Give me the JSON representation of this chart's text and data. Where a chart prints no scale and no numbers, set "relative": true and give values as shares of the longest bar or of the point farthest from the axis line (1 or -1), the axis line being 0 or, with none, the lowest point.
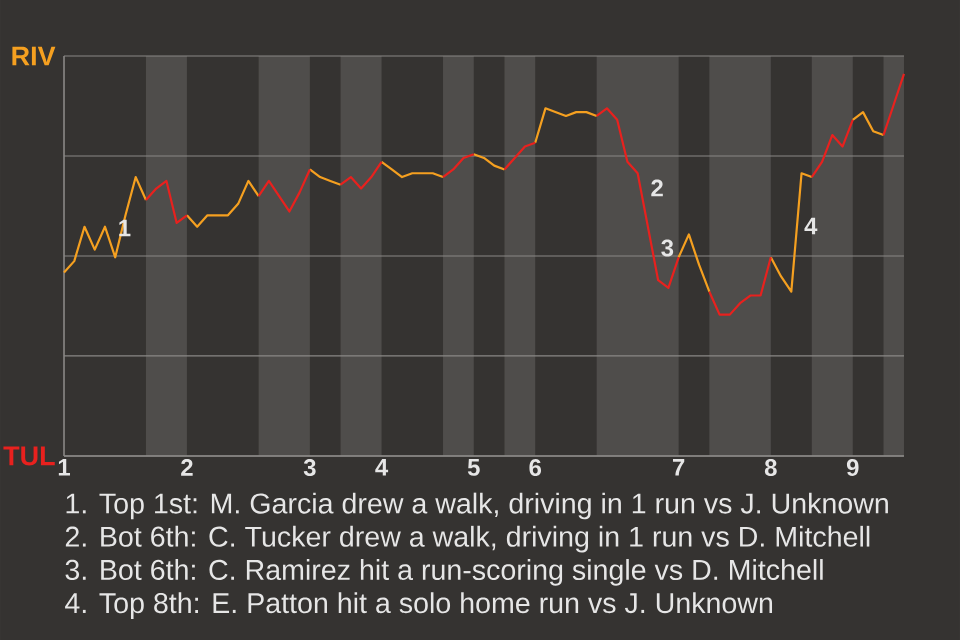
{
  "chart_data": {
    "type": "line",
    "relative": true,
    "categories": [
      "1",
      null,
      null,
      null,
      null,
      null,
      null,
      null,
      null,
      null,
      null,
      null,
      "2",
      null,
      null,
      null,
      null,
      null,
      null,
      null,
      null,
      null,
      null,
      null,
      "3",
      null,
      null,
      null,
      null,
      null,
      null,
      "4",
      null,
      null,
      null,
      null,
      null,
      null,
      null,
      null,
      "5",
      null,
      null,
      null,
      null,
      null,
      "6",
      null,
      null,
      null,
      null,
      null,
      null,
      null,
      null,
      null,
      null,
      null,
      null,
      null,
      "7",
      null,
      null,
      null,
      null,
      null,
      null,
      null,
      null,
      "8",
      null,
      null,
      null,
      null,
      null,
      null,
      null,
      "9",
      null,
      null,
      null,
      null,
      null
    ],
    "grid": "y",
    "series": [
      {
        "name": "RIV",
        "color": "#f5a020",
        "values": [
          0.48,
          0.51,
          0.6,
          0.54,
          0.6,
          0.52,
          0.63,
          0.73,
          0.67,
          null,
          null,
          null,
          0.63,
          0.6,
          0.63,
          0.63,
          0.63,
          0.66,
          0.72,
          0.68,
          null,
          null,
          null,
          null,
          0.75,
          0.73,
          0.72,
          0.71,
          null,
          null,
          null,
          0.77,
          0.75,
          0.73,
          0.74,
          0.74,
          0.74,
          0.73,
          null,
          null,
          0.79,
          0.78,
          0.76,
          0.75,
          null,
          null,
          0.82,
          0.91,
          0.9,
          0.89,
          0.9,
          0.9,
          0.89,
          null,
          null,
          null,
          null,
          null,
          null,
          null,
          0.52,
          0.58,
          0.5,
          0.43,
          null,
          null,
          null,
          null,
          null,
          0.52,
          0.47,
          0.43,
          0.74,
          0.73,
          null,
          null,
          null,
          0.88,
          0.9,
          0.85,
          0.84,
          null,
          null
        ]
      },
      {
        "name": "TUL",
        "color": "#e8211e",
        "values": [
          null,
          null,
          null,
          null,
          null,
          null,
          null,
          null,
          0.67,
          0.7,
          0.72,
          0.61,
          0.63,
          null,
          null,
          null,
          null,
          null,
          null,
          0.68,
          0.72,
          0.68,
          0.64,
          0.69,
          0.75,
          null,
          null,
          0.71,
          0.73,
          0.7,
          0.73,
          0.77,
          null,
          null,
          null,
          null,
          null,
          0.73,
          0.75,
          0.78,
          0.79,
          null,
          null,
          0.75,
          0.78,
          0.81,
          0.82,
          null,
          null,
          null,
          null,
          null,
          0.89,
          0.91,
          0.88,
          0.77,
          0.74,
          0.6,
          0.46,
          0.44,
          0.52,
          null,
          null,
          0.43,
          0.37,
          0.37,
          0.4,
          0.42,
          0.42,
          0.52,
          null,
          null,
          null,
          0.73,
          0.77,
          0.84,
          0.81,
          0.88,
          null,
          null,
          0.84,
          0.92,
          1
        ]
      }
    ],
    "annotations": [
      "1",
      "2",
      "3",
      "4",
      "1. Top 1st: M. Garcia drew a walk, driving in 1 run vs J. Unknown",
      "2. Bot 6th: C. Tucker drew a walk, driving in 1 run vs D. Mitchell",
      "3. Bot 6th: C. Ramirez hit a run-scoring single vs D. Mitchell",
      "4. Top 8th: E. Patton hit a solo home run vs J. Unknown"
    ]
  }
}
